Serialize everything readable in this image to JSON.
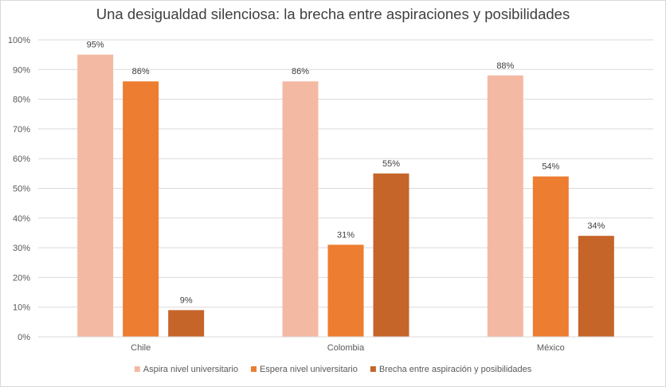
{
  "chart_data": {
    "type": "bar",
    "title": "Una desigualdad silenciosa: la brecha entre aspiraciones y posibilidades",
    "categories": [
      "Chile",
      "Colombia",
      "México"
    ],
    "series": [
      {
        "name": "Aspira nivel universitario",
        "values": [
          95,
          86,
          88
        ],
        "labels": [
          "95%",
          "86%",
          "88%"
        ],
        "color": "#f4b9a3"
      },
      {
        "name": "Espera nivel universitario",
        "values": [
          86,
          31,
          54
        ],
        "labels": [
          "86%",
          "31%",
          "54%"
        ],
        "color": "#ed7d31"
      },
      {
        "name": "Brecha entre aspiración y posibilidades",
        "values": [
          9,
          55,
          34
        ],
        "labels": [
          "9%",
          "55%",
          "34%"
        ],
        "color": "#c5652a"
      }
    ],
    "ylim": [
      0,
      100
    ],
    "yticks": [
      "0%",
      "10%",
      "20%",
      "30%",
      "40%",
      "50%",
      "60%",
      "70%",
      "80%",
      "90%",
      "100%"
    ],
    "grid": true,
    "legend": "bottom",
    "gridline_color": "#d9d9d9"
  }
}
